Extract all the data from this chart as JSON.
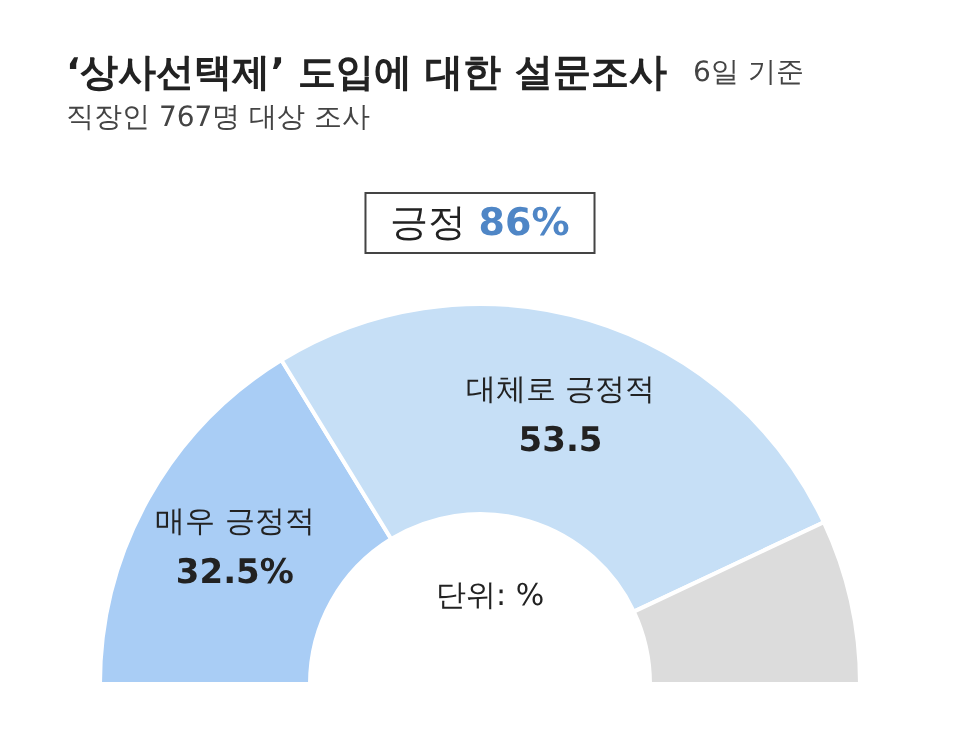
{
  "chart_data": {
    "type": "donut",
    "title": "‘상사선택제’ 도입에 대한 설문조사",
    "subtitle": "직장인 767명 대상 조사",
    "annotations": [
      "6일 기준",
      "긍정 86%",
      "단위: %"
    ],
    "categories": [
      "매우 긍정적",
      "대체로 긍정적",
      null
    ],
    "values": [
      32.5,
      53.5,
      14
    ],
    "value_labels": [
      "32.5%",
      "53.5",
      null
    ],
    "colors": [
      "#a9cdf5",
      "#c6dff6",
      "#dcdcdc"
    ]
  }
}
